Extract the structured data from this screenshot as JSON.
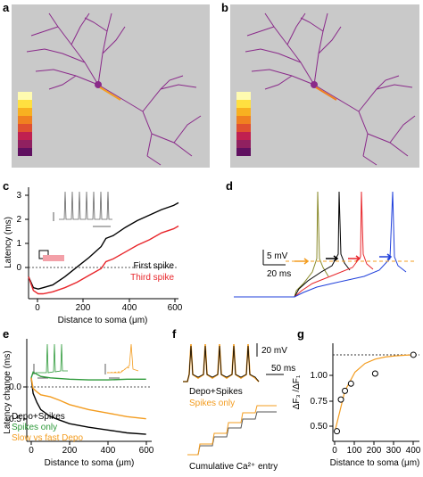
{
  "panels": {
    "a": "a",
    "b": "b",
    "c": "c",
    "d": "d",
    "e": "e",
    "f": "f",
    "g": "g"
  },
  "colors": {
    "first_spike": "#000000",
    "third_spike": "#e8262b",
    "spikes_only": "#f39c1f",
    "slow_vs_fast": "#f39c1f",
    "green": "#2e9a3a",
    "purple": "#8a2a8a",
    "olive": "#8a8a2a",
    "blue": "#1f3fdb",
    "pink": "#f3a0a8"
  },
  "panel_c": {
    "ylabel": "Latency (ms)",
    "xlabel": "Distance to soma (μm)",
    "yticks": [
      "3",
      "2",
      "1",
      "0"
    ],
    "xticks": [
      "0",
      "200",
      "400",
      "600"
    ],
    "legend": [
      {
        "label": "First spike",
        "color": "#000000"
      },
      {
        "label": "Third spike",
        "color": "#e8262b"
      }
    ]
  },
  "panel_d": {
    "scale_v": "5 mV",
    "scale_t": "20 ms"
  },
  "panel_e": {
    "ylabel": "Latency change (ms)",
    "xlabel": "Distance to soma (μm)",
    "yticks": [
      "0.0",
      "-0.5"
    ],
    "xticks": [
      "0",
      "200",
      "400",
      "600"
    ],
    "legend": [
      {
        "label": "Depo+Spikes",
        "color": "#000000"
      },
      {
        "label": "Spikes only",
        "color": "#2e9a3a"
      },
      {
        "label": "Slow vs fast Depo",
        "color": "#f39c1f"
      }
    ]
  },
  "panel_f": {
    "scale_v": "20 mV",
    "scale_t": "50 ms",
    "legend": [
      {
        "label": "Depo+Spikes",
        "color": "#000000"
      },
      {
        "label": "Spikes only",
        "color": "#f39c1f"
      }
    ],
    "caption": "Cumulative Ca²⁺ entry"
  },
  "panel_g": {
    "ylabel": "ΔF₃ /ΔF₁",
    "xlabel": "Distance to soma (μm)",
    "yticks": [
      "1.00",
      "0.75",
      "0.50"
    ],
    "xticks": [
      "0",
      "100",
      "200",
      "300",
      "400"
    ]
  },
  "chart_data": [
    {
      "type": "line",
      "panel": "c",
      "xlabel": "Distance to soma (μm)",
      "ylabel": "Latency (ms)",
      "xlim": [
        0,
        620
      ],
      "ylim": [
        -0.8,
        3.2
      ],
      "series": [
        {
          "name": "First spike",
          "x": [
            0,
            20,
            40,
            60,
            100,
            150,
            200,
            250,
            300,
            320,
            350,
            400,
            450,
            500,
            550,
            600,
            620
          ],
          "y": [
            0,
            -0.4,
            -0.45,
            -0.4,
            -0.3,
            0.0,
            0.35,
            0.7,
            1.1,
            1.4,
            1.5,
            1.8,
            2.05,
            2.25,
            2.45,
            2.6,
            2.7
          ]
        },
        {
          "name": "Third spike",
          "x": [
            0,
            20,
            40,
            60,
            100,
            150,
            200,
            250,
            300,
            320,
            350,
            400,
            450,
            500,
            550,
            600,
            620
          ],
          "y": [
            0,
            -0.5,
            -0.62,
            -0.62,
            -0.55,
            -0.4,
            -0.2,
            0.05,
            0.3,
            0.55,
            0.65,
            0.9,
            1.15,
            1.35,
            1.6,
            1.75,
            1.85
          ]
        }
      ]
    },
    {
      "type": "line",
      "panel": "e",
      "xlabel": "Distance to soma (μm)",
      "ylabel": "Latency change (ms)",
      "xlim": [
        0,
        620
      ],
      "ylim": [
        -0.9,
        0.3
      ],
      "series": [
        {
          "name": "Depo+Spikes",
          "x": [
            0,
            10,
            30,
            50,
            100,
            150,
            200,
            300,
            400,
            500,
            600
          ],
          "y": [
            0,
            -0.22,
            -0.35,
            -0.45,
            -0.55,
            -0.6,
            -0.65,
            -0.7,
            -0.74,
            -0.78,
            -0.8
          ]
        },
        {
          "name": "Spikes only",
          "x": [
            0,
            10,
            30,
            50,
            100,
            200,
            300,
            400,
            500,
            600
          ],
          "y": [
            0,
            0.08,
            0.05,
            0.02,
            0.0,
            -0.02,
            -0.03,
            -0.03,
            -0.02,
            -0.02
          ]
        },
        {
          "name": "Slow vs fast Depo",
          "x": [
            0,
            10,
            30,
            50,
            100,
            150,
            200,
            300,
            400,
            500,
            600
          ],
          "y": [
            0,
            -0.15,
            -0.2,
            -0.24,
            -0.27,
            -0.32,
            -0.38,
            -0.45,
            -0.5,
            -0.55,
            -0.58
          ]
        }
      ]
    },
    {
      "type": "scatter",
      "panel": "g",
      "xlabel": "Distance to soma (μm)",
      "ylabel": "ΔF₃ /ΔF₁",
      "xlim": [
        -10,
        420
      ],
      "ylim": [
        0.4,
        1.08
      ],
      "points": {
        "x": [
          10,
          30,
          50,
          80,
          200,
          390
        ],
        "y": [
          0.47,
          0.69,
          0.75,
          0.8,
          0.87,
          1.0
        ]
      },
      "fit": {
        "x": [
          0,
          50,
          100,
          150,
          200,
          250,
          300,
          350,
          400
        ],
        "y": [
          0.47,
          0.75,
          0.88,
          0.94,
          0.97,
          0.985,
          0.993,
          0.997,
          1.0
        ]
      },
      "reference_line": 1.0
    }
  ]
}
